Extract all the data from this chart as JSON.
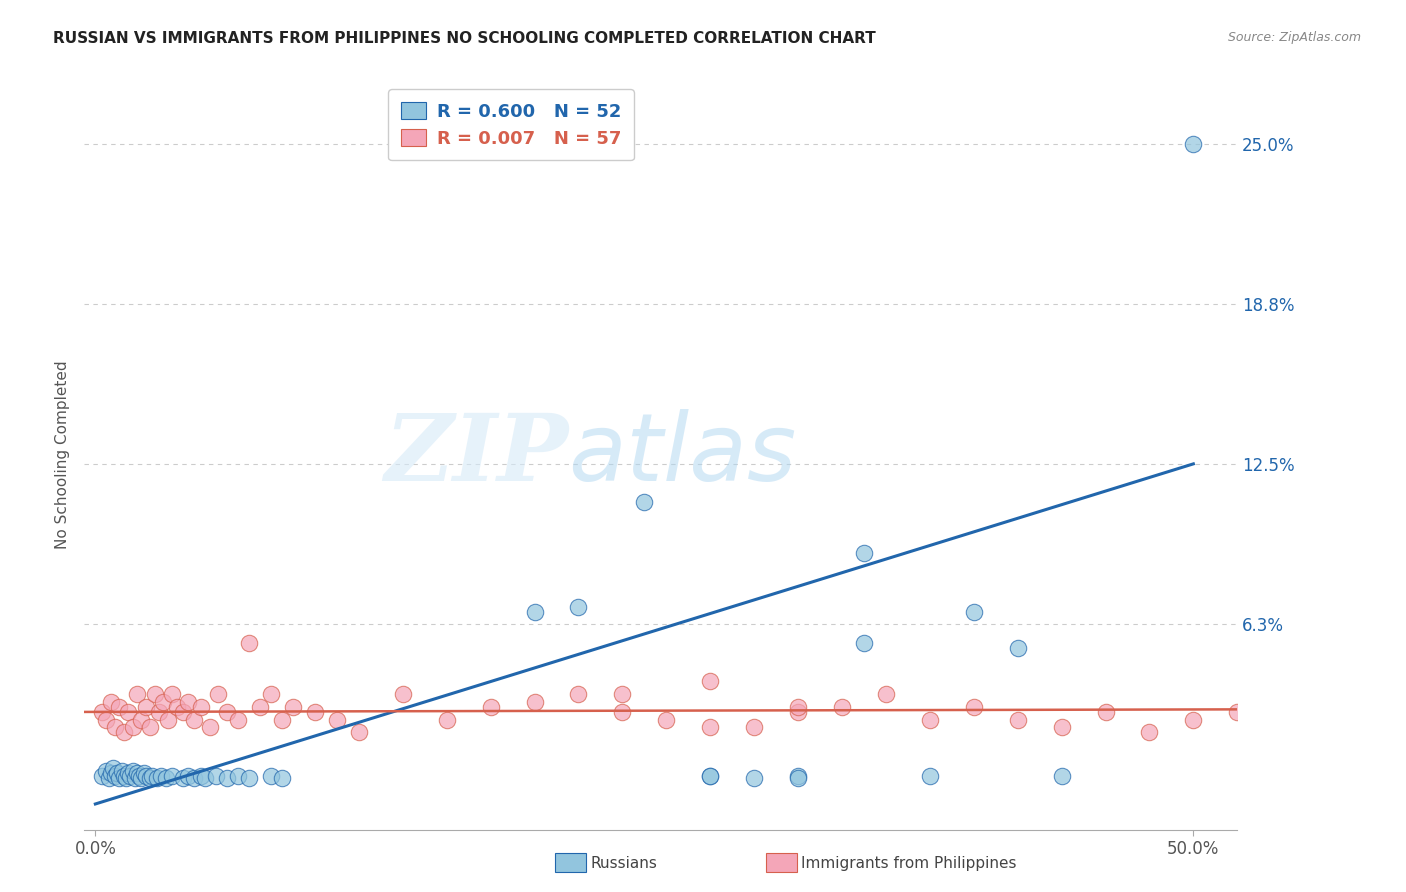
{
  "title": "RUSSIAN VS IMMIGRANTS FROM PHILIPPINES NO SCHOOLING COMPLETED CORRELATION CHART",
  "source": "Source: ZipAtlas.com",
  "ylabel": "No Schooling Completed",
  "ytick_labels": [
    "25.0%",
    "18.8%",
    "12.5%",
    "6.3%"
  ],
  "ytick_values": [
    0.25,
    0.1875,
    0.125,
    0.0625
  ],
  "xlim": [
    -0.005,
    0.52
  ],
  "ylim": [
    -0.018,
    0.275
  ],
  "blue_color": "#92c5de",
  "pink_color": "#f4a6b8",
  "blue_line_color": "#2166ac",
  "pink_line_color": "#d6604d",
  "watermark_zip": "ZIP",
  "watermark_atlas": "atlas",
  "russians_x": [
    0.003,
    0.005,
    0.006,
    0.007,
    0.008,
    0.009,
    0.01,
    0.011,
    0.012,
    0.013,
    0.014,
    0.015,
    0.016,
    0.017,
    0.018,
    0.019,
    0.02,
    0.021,
    0.022,
    0.023,
    0.025,
    0.026,
    0.028,
    0.03,
    0.032,
    0.035,
    0.04,
    0.042,
    0.045,
    0.048,
    0.05,
    0.055,
    0.06,
    0.065,
    0.07,
    0.08,
    0.085,
    0.2,
    0.22,
    0.25,
    0.28,
    0.3,
    0.32,
    0.35,
    0.38,
    0.4,
    0.42,
    0.44,
    0.28,
    0.32,
    0.35,
    0.5
  ],
  "russians_y": [
    0.003,
    0.005,
    0.002,
    0.004,
    0.006,
    0.003,
    0.004,
    0.002,
    0.005,
    0.003,
    0.002,
    0.004,
    0.003,
    0.005,
    0.002,
    0.004,
    0.003,
    0.002,
    0.004,
    0.003,
    0.002,
    0.003,
    0.002,
    0.003,
    0.002,
    0.003,
    0.002,
    0.003,
    0.002,
    0.003,
    0.002,
    0.003,
    0.002,
    0.003,
    0.002,
    0.003,
    0.002,
    0.067,
    0.069,
    0.11,
    0.003,
    0.002,
    0.003,
    0.09,
    0.003,
    0.067,
    0.053,
    0.003,
    0.003,
    0.002,
    0.055,
    0.25
  ],
  "philippines_x": [
    0.003,
    0.005,
    0.007,
    0.009,
    0.011,
    0.013,
    0.015,
    0.017,
    0.019,
    0.021,
    0.023,
    0.025,
    0.027,
    0.029,
    0.031,
    0.033,
    0.035,
    0.037,
    0.04,
    0.042,
    0.045,
    0.048,
    0.052,
    0.056,
    0.06,
    0.065,
    0.07,
    0.075,
    0.08,
    0.085,
    0.09,
    0.1,
    0.11,
    0.12,
    0.14,
    0.16,
    0.18,
    0.2,
    0.22,
    0.24,
    0.26,
    0.28,
    0.3,
    0.32,
    0.34,
    0.36,
    0.38,
    0.4,
    0.42,
    0.44,
    0.46,
    0.48,
    0.5,
    0.52,
    0.24,
    0.28,
    0.32
  ],
  "philippines_y": [
    0.028,
    0.025,
    0.032,
    0.022,
    0.03,
    0.02,
    0.028,
    0.022,
    0.035,
    0.025,
    0.03,
    0.022,
    0.035,
    0.028,
    0.032,
    0.025,
    0.035,
    0.03,
    0.028,
    0.032,
    0.025,
    0.03,
    0.022,
    0.035,
    0.028,
    0.025,
    0.055,
    0.03,
    0.035,
    0.025,
    0.03,
    0.028,
    0.025,
    0.02,
    0.035,
    0.025,
    0.03,
    0.032,
    0.035,
    0.028,
    0.025,
    0.04,
    0.022,
    0.028,
    0.03,
    0.035,
    0.025,
    0.03,
    0.025,
    0.022,
    0.028,
    0.02,
    0.025,
    0.028,
    0.035,
    0.022,
    0.03
  ],
  "blue_trend_x": [
    0.0,
    0.5
  ],
  "blue_trend_y": [
    -0.008,
    0.125
  ],
  "pink_trend_x": [
    -0.005,
    0.52
  ],
  "pink_trend_y": [
    0.028,
    0.029
  ],
  "legend_r1": "R = 0.600",
  "legend_n1": "N = 52",
  "legend_r2": "R = 0.007",
  "legend_n2": "N = 57"
}
